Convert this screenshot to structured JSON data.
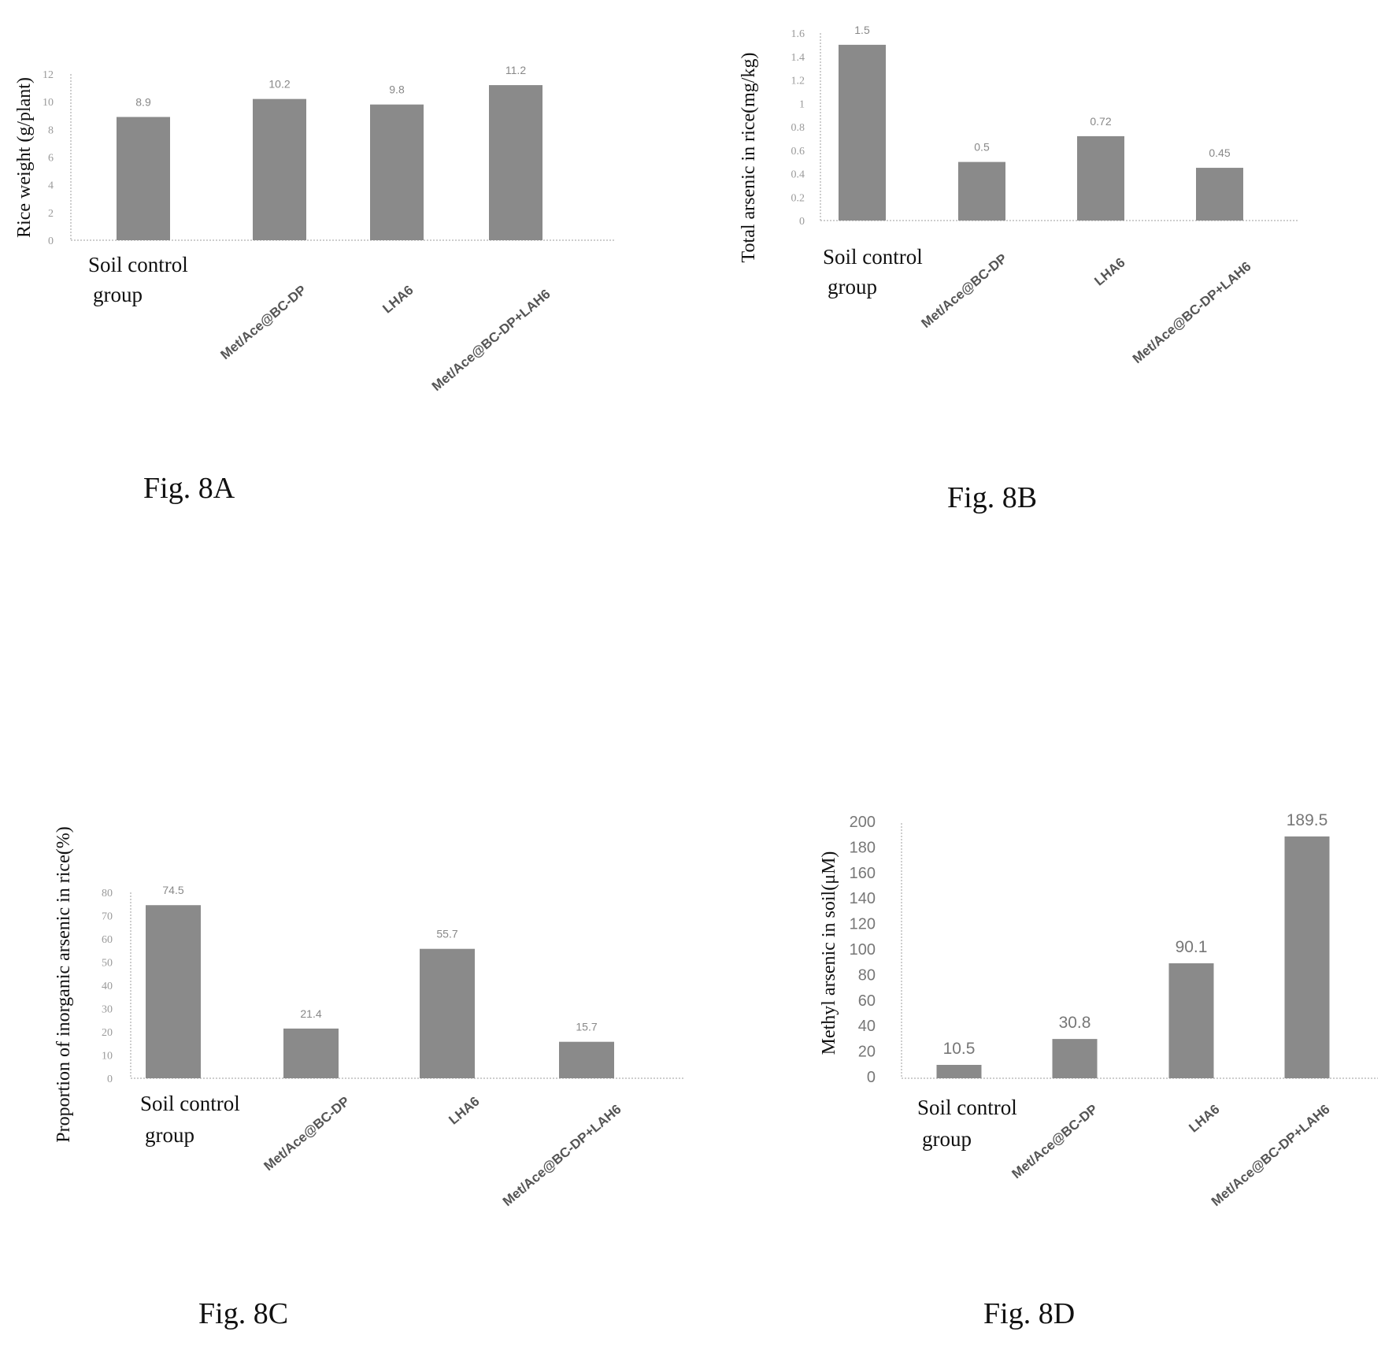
{
  "chart_data": [
    {
      "type": "bar",
      "caption": "Fig. 8A",
      "ylabel": "Rice weight (g/plant)",
      "categories": [
        "Soil control group",
        "Met/Ace@BC-DP",
        "LHA6",
        "Met/Ace@BC-DP+LAH6"
      ],
      "values": [
        8.9,
        10.2,
        9.8,
        11.2
      ],
      "data_labels": [
        "8.9",
        "10.2",
        "9.8",
        "11.2"
      ],
      "yticks": [
        "0",
        "2",
        "4",
        "6",
        "8",
        "10",
        "12"
      ],
      "ylim": [
        0,
        12
      ],
      "grid": false,
      "bar_color": "#8a8a8a"
    },
    {
      "type": "bar",
      "caption": "Fig. 8B",
      "ylabel": "Total arsenic in rice(mg/kg)",
      "categories": [
        "Soil control group",
        "Met/Ace@BC-DP",
        "LHA6",
        "Met/Ace@BC-DP+LAH6"
      ],
      "values": [
        1.5,
        0.5,
        0.72,
        0.45
      ],
      "data_labels": [
        "1.5",
        "0.5",
        "0.72",
        "0.45"
      ],
      "yticks": [
        "0",
        "0.2",
        "0.4",
        "0.6",
        "0.8",
        "1",
        "1.2",
        "1.4",
        "1.6"
      ],
      "ylim": [
        0,
        1.6
      ],
      "grid": false,
      "bar_color": "#8a8a8a"
    },
    {
      "type": "bar",
      "caption": "Fig. 8C",
      "ylabel": "Proportion of inorganic arsenic in rice(%)",
      "categories": [
        "Soil control group",
        "Met/Ace@BC-DP",
        "LHA6",
        "Met/Ace@BC-DP+LAH6"
      ],
      "values": [
        74.5,
        21.4,
        55.7,
        15.7
      ],
      "data_labels": [
        "74.5",
        "21.4",
        "55.7",
        "15.7"
      ],
      "yticks": [
        "0",
        "10",
        "20",
        "30",
        "40",
        "50",
        "60",
        "70",
        "80"
      ],
      "ylim": [
        0,
        80
      ],
      "grid": false,
      "bar_color": "#8a8a8a"
    },
    {
      "type": "bar",
      "caption": "Fig. 8D",
      "ylabel": "Methyl arsenic in soil(μM)",
      "categories": [
        "Soil control group",
        "Met/Ace@BC-DP",
        "LHA6",
        "Met/Ace@BC-DP+LAH6"
      ],
      "values": [
        10.5,
        30.8,
        90.1,
        189.5
      ],
      "data_labels": [
        "10.5",
        "30.8",
        "90.1",
        "189.5"
      ],
      "yticks": [
        "0",
        "20",
        "40",
        "60",
        "80",
        "100",
        "120",
        "140",
        "160",
        "180",
        "200"
      ],
      "ylim": [
        0,
        200
      ],
      "grid": false,
      "bar_color": "#8a8a8a"
    }
  ]
}
